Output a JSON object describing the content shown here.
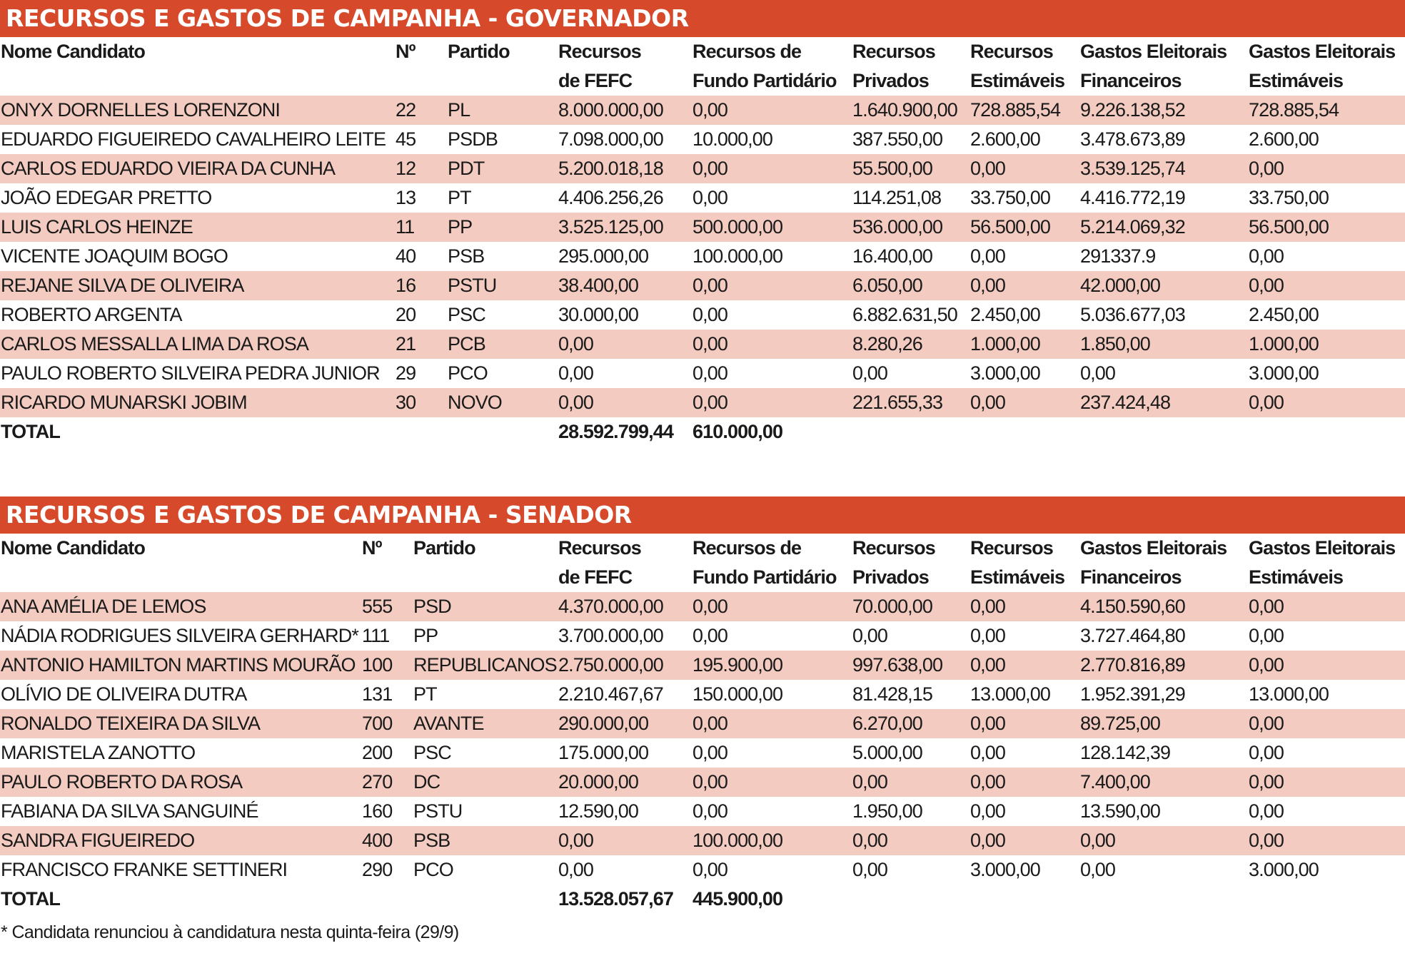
{
  "accent_color": "#d6492a",
  "stripe_color": "#f3cbc0",
  "governador": {
    "title": "RECURSOS E GASTOS DE CAMPANHA - GOVERNADOR",
    "headers": [
      [
        "Nome Candidato"
      ],
      [
        "Nº"
      ],
      [
        "Partido"
      ],
      [
        "Recursos",
        "de FEFC"
      ],
      [
        "Recursos de",
        "Fundo Partidário"
      ],
      [
        "Recursos",
        "Privados"
      ],
      [
        "Recursos",
        "Estimáveis"
      ],
      [
        "Gastos Eleitorais",
        "Financeiros"
      ],
      [
        "Gastos Eleitorais",
        "Estimáveis"
      ]
    ],
    "rows": [
      [
        "ONYX DORNELLES LORENZONI",
        "22",
        "PL",
        "8.000.000,00",
        "0,00",
        "1.640.900,00",
        "728.885,54",
        "9.226.138,52",
        "728.885,54"
      ],
      [
        "EDUARDO FIGUEIREDO CAVALHEIRO LEITE",
        "45",
        "PSDB",
        "7.098.000,00",
        "10.000,00",
        "387.550,00",
        "2.600,00",
        "3.478.673,89",
        "2.600,00"
      ],
      [
        "CARLOS EDUARDO VIEIRA DA CUNHA",
        "12",
        "PDT",
        "5.200.018,18",
        "0,00",
        "55.500,00",
        "0,00",
        "3.539.125,74",
        "0,00"
      ],
      [
        "JOÃO EDEGAR PRETTO",
        "13",
        "PT",
        "4.406.256,26",
        "0,00",
        "114.251,08",
        "33.750,00",
        "4.416.772,19",
        "33.750,00"
      ],
      [
        "LUIS CARLOS HEINZE",
        "11",
        "PP",
        "3.525.125,00",
        "500.000,00",
        "536.000,00",
        "56.500,00",
        "5.214.069,32",
        "56.500,00"
      ],
      [
        "VICENTE JOAQUIM BOGO",
        "40",
        "PSB",
        "295.000,00",
        "100.000,00",
        "16.400,00",
        "0,00",
        "291337.9",
        "0,00"
      ],
      [
        "REJANE SILVA DE OLIVEIRA",
        "16",
        "PSTU",
        "38.400,00",
        "0,00",
        "6.050,00",
        "0,00",
        "42.000,00",
        "0,00"
      ],
      [
        "ROBERTO ARGENTA",
        "20",
        "PSC",
        "30.000,00",
        "0,00",
        "6.882.631,50",
        "2.450,00",
        "5.036.677,03",
        "2.450,00"
      ],
      [
        "CARLOS MESSALLA LIMA DA ROSA",
        "21",
        "PCB",
        "0,00",
        "0,00",
        "8.280,26",
        "1.000,00",
        "1.850,00",
        "1.000,00"
      ],
      [
        "PAULO ROBERTO SILVEIRA PEDRA JUNIOR",
        "29",
        "PCO",
        "0,00",
        "0,00",
        "0,00",
        "3.000,00",
        "0,00",
        "3.000,00"
      ],
      [
        "RICARDO MUNARSKI JOBIM",
        "30",
        "NOVO",
        "0,00",
        "0,00",
        "221.655,33",
        "0,00",
        "237.424,48",
        "0,00"
      ]
    ],
    "total": {
      "label": "TOTAL",
      "fefc": "28.592.799,44",
      "fundo": "610.000,00"
    }
  },
  "senador": {
    "title": "RECURSOS E GASTOS DE CAMPANHA - SENADOR",
    "headers": [
      [
        "Nome Candidato"
      ],
      [
        "Nº"
      ],
      [
        "Partido"
      ],
      [
        "Recursos",
        "de FEFC"
      ],
      [
        "Recursos de",
        "Fundo Partidário"
      ],
      [
        "Recursos",
        "Privados"
      ],
      [
        "Recursos",
        "Estimáveis"
      ],
      [
        "Gastos Eleitorais",
        "Financeiros"
      ],
      [
        "Gastos Eleitorais",
        "Estimáveis"
      ]
    ],
    "rows": [
      [
        "ANA AMÉLIA DE LEMOS",
        "555",
        "PSD",
        "4.370.000,00",
        "0,00",
        "70.000,00",
        "0,00",
        "4.150.590,60",
        "0,00"
      ],
      [
        "NÁDIA RODRIGUES SILVEIRA GERHARD*",
        "111",
        "PP",
        "3.700.000,00",
        "0,00",
        "0,00",
        "0,00",
        "3.727.464,80",
        "0,00"
      ],
      [
        "ANTONIO HAMILTON MARTINS MOURÃO",
        "100",
        "REPUBLICANOS",
        "2.750.000,00",
        "195.900,00",
        "997.638,00",
        "0,00",
        "2.770.816,89",
        "0,00"
      ],
      [
        "OLÍVIO DE OLIVEIRA DUTRA",
        "131",
        "PT",
        "2.210.467,67",
        "150.000,00",
        "81.428,15",
        "13.000,00",
        "1.952.391,29",
        "13.000,00"
      ],
      [
        "RONALDO TEIXEIRA DA SILVA",
        "700",
        "AVANTE",
        "290.000,00",
        "0,00",
        "6.270,00",
        "0,00",
        "89.725,00",
        "0,00"
      ],
      [
        "MARISTELA ZANOTTO",
        "200",
        "PSC",
        "175.000,00",
        "0,00",
        "5.000,00",
        "0,00",
        "128.142,39",
        "0,00"
      ],
      [
        "PAULO ROBERTO DA ROSA",
        "270",
        "DC",
        "20.000,00",
        "0,00",
        "0,00",
        "0,00",
        "7.400,00",
        "0,00"
      ],
      [
        "FABIANA DA SILVA SANGUINÉ",
        "160",
        "PSTU",
        "12.590,00",
        "0,00",
        "1.950,00",
        "0,00",
        "13.590,00",
        "0,00"
      ],
      [
        "SANDRA FIGUEIREDO",
        "400",
        "PSB",
        "0,00",
        "100.000,00",
        "0,00",
        "0,00",
        "0,00",
        "0,00"
      ],
      [
        "FRANCISCO FRANKE SETTINERI",
        "290",
        "PCO",
        "0,00",
        "0,00",
        "0,00",
        "3.000,00",
        "0,00",
        "3.000,00"
      ]
    ],
    "total": {
      "label": "TOTAL",
      "fefc": "13.528.057,67",
      "fundo": "445.900,00"
    }
  },
  "footnote": "* Candidata renunciou à candidatura nesta quinta-feira (29/9)"
}
